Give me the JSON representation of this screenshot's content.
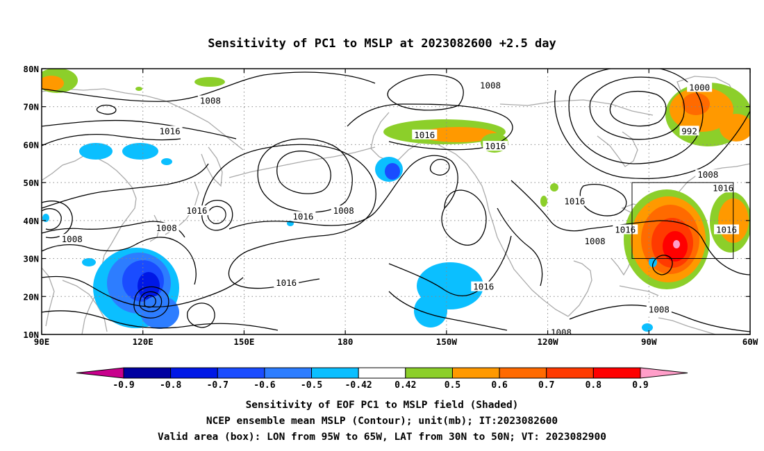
{
  "title": "Sensitivity of PC1 to MSLP at 2023082600 +2.5 day",
  "map": {
    "lon_range": [
      90,
      300
    ],
    "lat_range": [
      10,
      80
    ],
    "lon_ticks": [
      {
        "lon": 90,
        "label": "90E"
      },
      {
        "lon": 120,
        "label": "120E"
      },
      {
        "lon": 150,
        "label": "150E"
      },
      {
        "lon": 180,
        "label": "180"
      },
      {
        "lon": 210,
        "label": "150W"
      },
      {
        "lon": 240,
        "label": "120W"
      },
      {
        "lon": 270,
        "label": "90W"
      },
      {
        "lon": 300,
        "label": "60W"
      }
    ],
    "lat_ticks": [
      {
        "lat": 10,
        "label": "10N"
      },
      {
        "lat": 20,
        "label": "20N"
      },
      {
        "lat": 30,
        "label": "30N"
      },
      {
        "lat": 40,
        "label": "40N"
      },
      {
        "lat": 50,
        "label": "50N"
      },
      {
        "lat": 60,
        "label": "60N"
      },
      {
        "lat": 70,
        "label": "70N"
      },
      {
        "lat": 80,
        "label": "80N"
      }
    ],
    "grid": "dotted",
    "valid_box": {
      "lon_min": 265,
      "lon_max": 295,
      "lat_min": 30,
      "lat_max": 50
    },
    "contour_labels": [
      {
        "text": "1008",
        "lon": 140,
        "lat": 71.5
      },
      {
        "text": "1016",
        "lon": 128,
        "lat": 63.5
      },
      {
        "text": "1008",
        "lon": 223,
        "lat": 75.5
      },
      {
        "text": "1016",
        "lon": 203.5,
        "lat": 62.5
      },
      {
        "text": "1016",
        "lon": 224.5,
        "lat": 59.5
      },
      {
        "text": "1000",
        "lon": 285,
        "lat": 75
      },
      {
        "text": "992",
        "lon": 282,
        "lat": 63.5
      },
      {
        "text": "1008",
        "lon": 287.5,
        "lat": 52
      },
      {
        "text": "1016",
        "lon": 292,
        "lat": 48.5
      },
      {
        "text": "1016",
        "lon": 248,
        "lat": 45
      },
      {
        "text": "1016",
        "lon": 136,
        "lat": 42.5
      },
      {
        "text": "1016",
        "lon": 167.5,
        "lat": 41
      },
      {
        "text": "1008",
        "lon": 179.5,
        "lat": 42.5
      },
      {
        "text": "1008",
        "lon": 127,
        "lat": 38
      },
      {
        "text": "1008",
        "lon": 99,
        "lat": 35
      },
      {
        "text": "1016",
        "lon": 162.5,
        "lat": 23.5
      },
      {
        "text": "1016",
        "lon": 221,
        "lat": 22.5
      },
      {
        "text": "1016",
        "lon": 263,
        "lat": 37.5
      },
      {
        "text": "1016",
        "lon": 293,
        "lat": 37.5
      },
      {
        "text": "1008",
        "lon": 254,
        "lat": 34.5
      },
      {
        "text": "1008",
        "lon": 273,
        "lat": 16.5
      },
      {
        "text": "1008",
        "lon": 244,
        "lat": 10.5
      }
    ]
  },
  "colorbar": {
    "labels": [
      "-0.9",
      "-0.8",
      "-0.7",
      "-0.6",
      "-0.5",
      "-0.42",
      "0.42",
      "0.5",
      "0.6",
      "0.7",
      "0.8",
      "0.9"
    ],
    "colors": [
      "#c8008c",
      "#0000a0",
      "#0018e6",
      "#1a4cff",
      "#2d7dff",
      "#0bbfff",
      "#ffffff",
      "#8ccf2a",
      "#ff9900",
      "#ff6a00",
      "#ff3a00",
      "#ff0000",
      "#ff9ec9"
    ]
  },
  "captions": [
    "Sensitivity of EOF PC1 to MSLP field (Shaded)",
    "NCEP ensemble mean MSLP (Contour); unit(mb); IT:2023082600",
    "Valid area (box): LON from 95W to 65W, LAT from 30N to 50N; VT: 2023082900"
  ]
}
